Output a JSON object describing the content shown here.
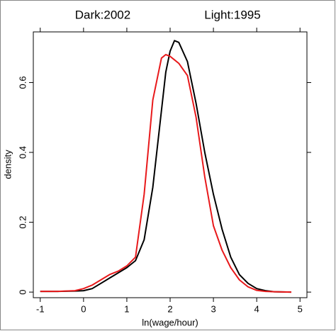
{
  "chart_data": {
    "type": "line",
    "annotations": [
      "Dark:2002",
      "Light:1995"
    ],
    "x_label": "ln(wage/hour)",
    "y_label": "density",
    "x": [
      -1,
      -0.6,
      -0.2,
      0,
      0.2,
      0.4,
      0.6,
      0.8,
      1.0,
      1.2,
      1.4,
      1.6,
      1.8,
      1.9,
      2.0,
      2.1,
      2.2,
      2.4,
      2.6,
      2.8,
      3.0,
      3.2,
      3.4,
      3.6,
      3.8,
      4.0,
      4.2,
      4.4,
      4.8
    ],
    "series": [
      {
        "color": "#000000",
        "values": [
          0.002,
          0.002,
          0.003,
          0.004,
          0.01,
          0.025,
          0.04,
          0.055,
          0.07,
          0.09,
          0.15,
          0.3,
          0.52,
          0.63,
          0.69,
          0.72,
          0.715,
          0.66,
          0.54,
          0.4,
          0.28,
          0.18,
          0.1,
          0.05,
          0.025,
          0.01,
          0.004,
          0.001,
          0
        ]
      },
      {
        "color": "#e8191b",
        "values": [
          0.002,
          0.002,
          0.004,
          0.01,
          0.02,
          0.035,
          0.05,
          0.06,
          0.075,
          0.1,
          0.28,
          0.55,
          0.67,
          0.68,
          0.675,
          0.665,
          0.655,
          0.62,
          0.5,
          0.33,
          0.19,
          0.12,
          0.07,
          0.035,
          0.015,
          0.005,
          0.002,
          0.001,
          0
        ]
      }
    ],
    "xlim": [
      -1.16,
      5.16
    ],
    "ylim": [
      -0.016,
      0.745
    ],
    "xticks": [
      -1,
      0,
      1,
      2,
      3,
      4,
      5
    ],
    "yticks": [
      0,
      0.2,
      0.4,
      0.6
    ]
  }
}
